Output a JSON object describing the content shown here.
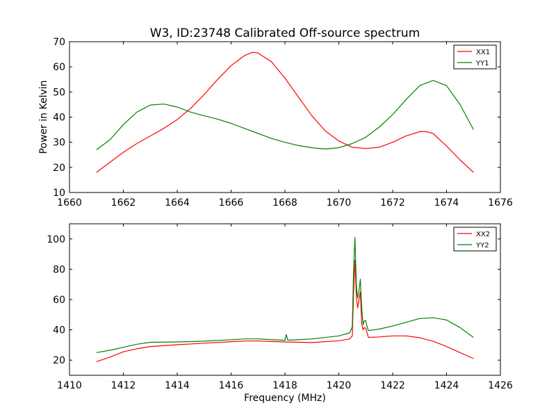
{
  "figure": {
    "title": "W3, ID:23748 Calibrated Off-source spectrum"
  },
  "chart_data": [
    {
      "type": "line",
      "title": "W3, ID:23748 Calibrated Off-source spectrum",
      "xlabel": "",
      "ylabel": "Power in Kelvin",
      "xlim": [
        1660,
        1676
      ],
      "ylim": [
        10,
        70
      ],
      "xticks": [
        "1660",
        "1662",
        "1664",
        "1666",
        "1668",
        "1670",
        "1672",
        "1674",
        "1676"
      ],
      "yticks": [
        "10",
        "20",
        "30",
        "40",
        "50",
        "60",
        "70"
      ],
      "legend_position": "top-right",
      "series": [
        {
          "name": "XX1",
          "color": "#ff0000",
          "x": [
            1661.0,
            1661.5,
            1662.0,
            1662.5,
            1663.0,
            1663.5,
            1664.0,
            1664.5,
            1665.0,
            1665.5,
            1666.0,
            1666.5,
            1666.8,
            1667.0,
            1667.5,
            1668.0,
            1668.5,
            1669.0,
            1669.5,
            1670.0,
            1670.5,
            1671.0,
            1671.5,
            1672.0,
            1672.5,
            1673.0,
            1673.2,
            1673.5,
            1674.0,
            1674.5,
            1675.0
          ],
          "y": [
            18,
            22,
            26,
            29.5,
            32.5,
            35.5,
            39,
            43.5,
            49,
            55,
            60.5,
            64.5,
            65.8,
            65.5,
            62,
            55.5,
            48,
            40.5,
            34.5,
            30.5,
            28,
            27.5,
            28,
            30,
            32.5,
            34.2,
            34.3,
            33.5,
            28.5,
            23,
            18
          ]
        },
        {
          "name": "YY1",
          "color": "#008000",
          "x": [
            1661.0,
            1661.5,
            1662.0,
            1662.5,
            1663.0,
            1663.5,
            1664.0,
            1664.5,
            1665.0,
            1665.5,
            1666.0,
            1666.5,
            1667.0,
            1667.5,
            1668.0,
            1668.5,
            1669.0,
            1669.5,
            1670.0,
            1670.5,
            1671.0,
            1671.5,
            1672.0,
            1672.5,
            1673.0,
            1673.5,
            1674.0,
            1674.5,
            1675.0
          ],
          "y": [
            27,
            31,
            37,
            42,
            44.8,
            45.2,
            44,
            42,
            40.5,
            39.2,
            37.5,
            35.5,
            33.5,
            31.5,
            30,
            28.7,
            27.8,
            27.3,
            27.8,
            29.5,
            32,
            36,
            41,
            47,
            52.5,
            54.6,
            52.5,
            45,
            35
          ]
        }
      ]
    },
    {
      "type": "line",
      "title": "",
      "xlabel": "Frequency (MHz)",
      "ylabel": "",
      "xlim": [
        1410,
        1426
      ],
      "ylim": [
        10,
        110
      ],
      "xticks": [
        "1410",
        "1412",
        "1414",
        "1416",
        "1418",
        "1420",
        "1422",
        "1424",
        "1426"
      ],
      "yticks": [
        "20",
        "40",
        "60",
        "80",
        "100"
      ],
      "legend_position": "top-right",
      "series": [
        {
          "name": "XX2",
          "color": "#ff0000",
          "x": [
            1411.0,
            1411.5,
            1412.0,
            1412.5,
            1413.0,
            1414.0,
            1415.0,
            1416.0,
            1416.5,
            1417.0,
            1418.0,
            1419.0,
            1420.0,
            1420.4,
            1420.5,
            1420.55,
            1420.6,
            1420.65,
            1420.7,
            1420.75,
            1420.8,
            1420.85,
            1420.9,
            1420.95,
            1421.0,
            1421.05,
            1421.1,
            1421.5,
            1422.0,
            1422.5,
            1423.0,
            1423.5,
            1424.0,
            1424.5,
            1425.0
          ],
          "y": [
            19,
            22,
            25.5,
            27.5,
            29,
            30.2,
            31.2,
            32.2,
            32.6,
            32.6,
            32,
            31.6,
            32.8,
            34,
            36,
            65,
            86,
            62,
            54.5,
            60,
            65,
            44,
            40,
            41.5,
            41,
            38,
            35,
            35.3,
            36,
            36,
            34.8,
            32.5,
            29,
            25,
            21
          ]
        },
        {
          "name": "YY2",
          "color": "#008000",
          "x": [
            1411.0,
            1411.5,
            1412.0,
            1412.5,
            1413.0,
            1414.0,
            1415.0,
            1416.0,
            1416.5,
            1417.0,
            1417.9,
            1418.0,
            1418.05,
            1418.1,
            1418.2,
            1419.0,
            1420.0,
            1420.4,
            1420.5,
            1420.55,
            1420.6,
            1420.65,
            1420.7,
            1420.75,
            1420.8,
            1420.85,
            1420.9,
            1420.95,
            1421.0,
            1421.05,
            1421.1,
            1421.5,
            1422.0,
            1422.5,
            1423.0,
            1423.5,
            1424.0,
            1424.5,
            1425.0
          ],
          "y": [
            25,
            26.5,
            28.5,
            30.5,
            31.8,
            32,
            32.5,
            33.5,
            34,
            34,
            33.2,
            33,
            37,
            33.2,
            33.2,
            34,
            36,
            38,
            42,
            80,
            101,
            70,
            61,
            66,
            73.5,
            55,
            43.5,
            46,
            46,
            42,
            39.5,
            40.5,
            42.5,
            45,
            47.5,
            48,
            46.5,
            41.5,
            35
          ]
        }
      ]
    }
  ]
}
